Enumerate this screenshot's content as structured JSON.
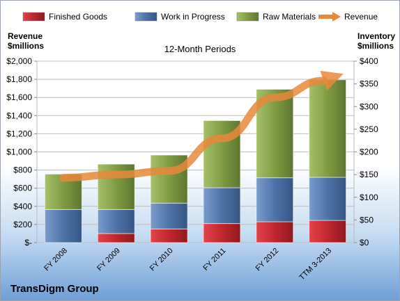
{
  "chart_data": {
    "type": "bar",
    "subtype": "stacked bar with line overlay",
    "title": "12-Month Periods",
    "company": "TransDigm Group",
    "categories": [
      "FY 2008",
      "FY 2009",
      "FY 2010",
      "FY 2011",
      "FY 2012",
      "TTM 3-2013"
    ],
    "series": [
      {
        "name": "Finished Goods",
        "type": "bar",
        "axis": "right",
        "color": "#c0272d",
        "values": [
          0,
          20,
          30,
          42,
          46,
          49
        ]
      },
      {
        "name": "Work in Progress",
        "type": "bar",
        "axis": "right",
        "color": "#4f73a8",
        "values": [
          73,
          53,
          57,
          79,
          97,
          95
        ]
      },
      {
        "name": "Raw Materials",
        "type": "bar",
        "axis": "right",
        "color": "#7f9c43",
        "values": [
          78,
          100,
          106,
          148,
          195,
          215
        ]
      },
      {
        "name": "Revenue",
        "type": "line",
        "axis": "left",
        "color": "#e8883a",
        "values": [
          715,
          750,
          790,
          1150,
          1600,
          1800
        ]
      }
    ],
    "left_axis": {
      "label": "Revenue\n$millions",
      "ylim": [
        0,
        2000
      ],
      "ticks": [
        "$-",
        "$200",
        "$400",
        "$600",
        "$800",
        "$1,000",
        "$1,200",
        "$1,400",
        "$1,600",
        "$1,800",
        "$2,000"
      ]
    },
    "right_axis": {
      "label": "Inventory\n$millions",
      "ylim": [
        0,
        400
      ],
      "ticks": [
        "$0",
        "$50",
        "$100",
        "$150",
        "$200",
        "$250",
        "$300",
        "$350",
        "$400"
      ]
    },
    "grid": true,
    "legend": "top"
  }
}
